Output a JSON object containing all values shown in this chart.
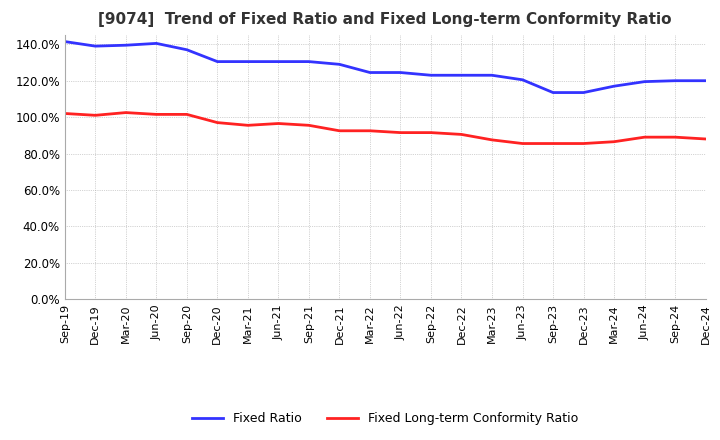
{
  "title": "[9074]  Trend of Fixed Ratio and Fixed Long-term Conformity Ratio",
  "title_fontsize": 11,
  "x_labels": [
    "Sep-19",
    "Dec-19",
    "Mar-20",
    "Jun-20",
    "Sep-20",
    "Dec-20",
    "Mar-21",
    "Jun-21",
    "Sep-21",
    "Dec-21",
    "Mar-22",
    "Jun-22",
    "Sep-22",
    "Dec-22",
    "Mar-23",
    "Jun-23",
    "Sep-23",
    "Dec-23",
    "Mar-24",
    "Jun-24",
    "Sep-24",
    "Dec-24"
  ],
  "fixed_ratio": [
    141.5,
    139.0,
    139.5,
    140.5,
    137.0,
    130.5,
    130.5,
    130.5,
    130.5,
    129.0,
    124.5,
    124.5,
    123.0,
    123.0,
    123.0,
    120.5,
    113.5,
    113.5,
    117.0,
    119.5,
    120.0,
    120.0
  ],
  "fixed_lt_ratio": [
    102.0,
    101.0,
    102.5,
    101.5,
    101.5,
    97.0,
    95.5,
    96.5,
    95.5,
    92.5,
    92.5,
    91.5,
    91.5,
    90.5,
    87.5,
    85.5,
    85.5,
    85.5,
    86.5,
    89.0,
    89.0,
    88.0
  ],
  "fixed_ratio_color": "#3333FF",
  "fixed_lt_ratio_color": "#FF2222",
  "ylim": [
    0,
    145
  ],
  "yticks": [
    0,
    20,
    40,
    60,
    80,
    100,
    120,
    140
  ],
  "grid_color": "#AAAAAA",
  "background_color": "#FFFFFF",
  "legend_fixed_ratio": "Fixed Ratio",
  "legend_fixed_lt_ratio": "Fixed Long-term Conformity Ratio"
}
